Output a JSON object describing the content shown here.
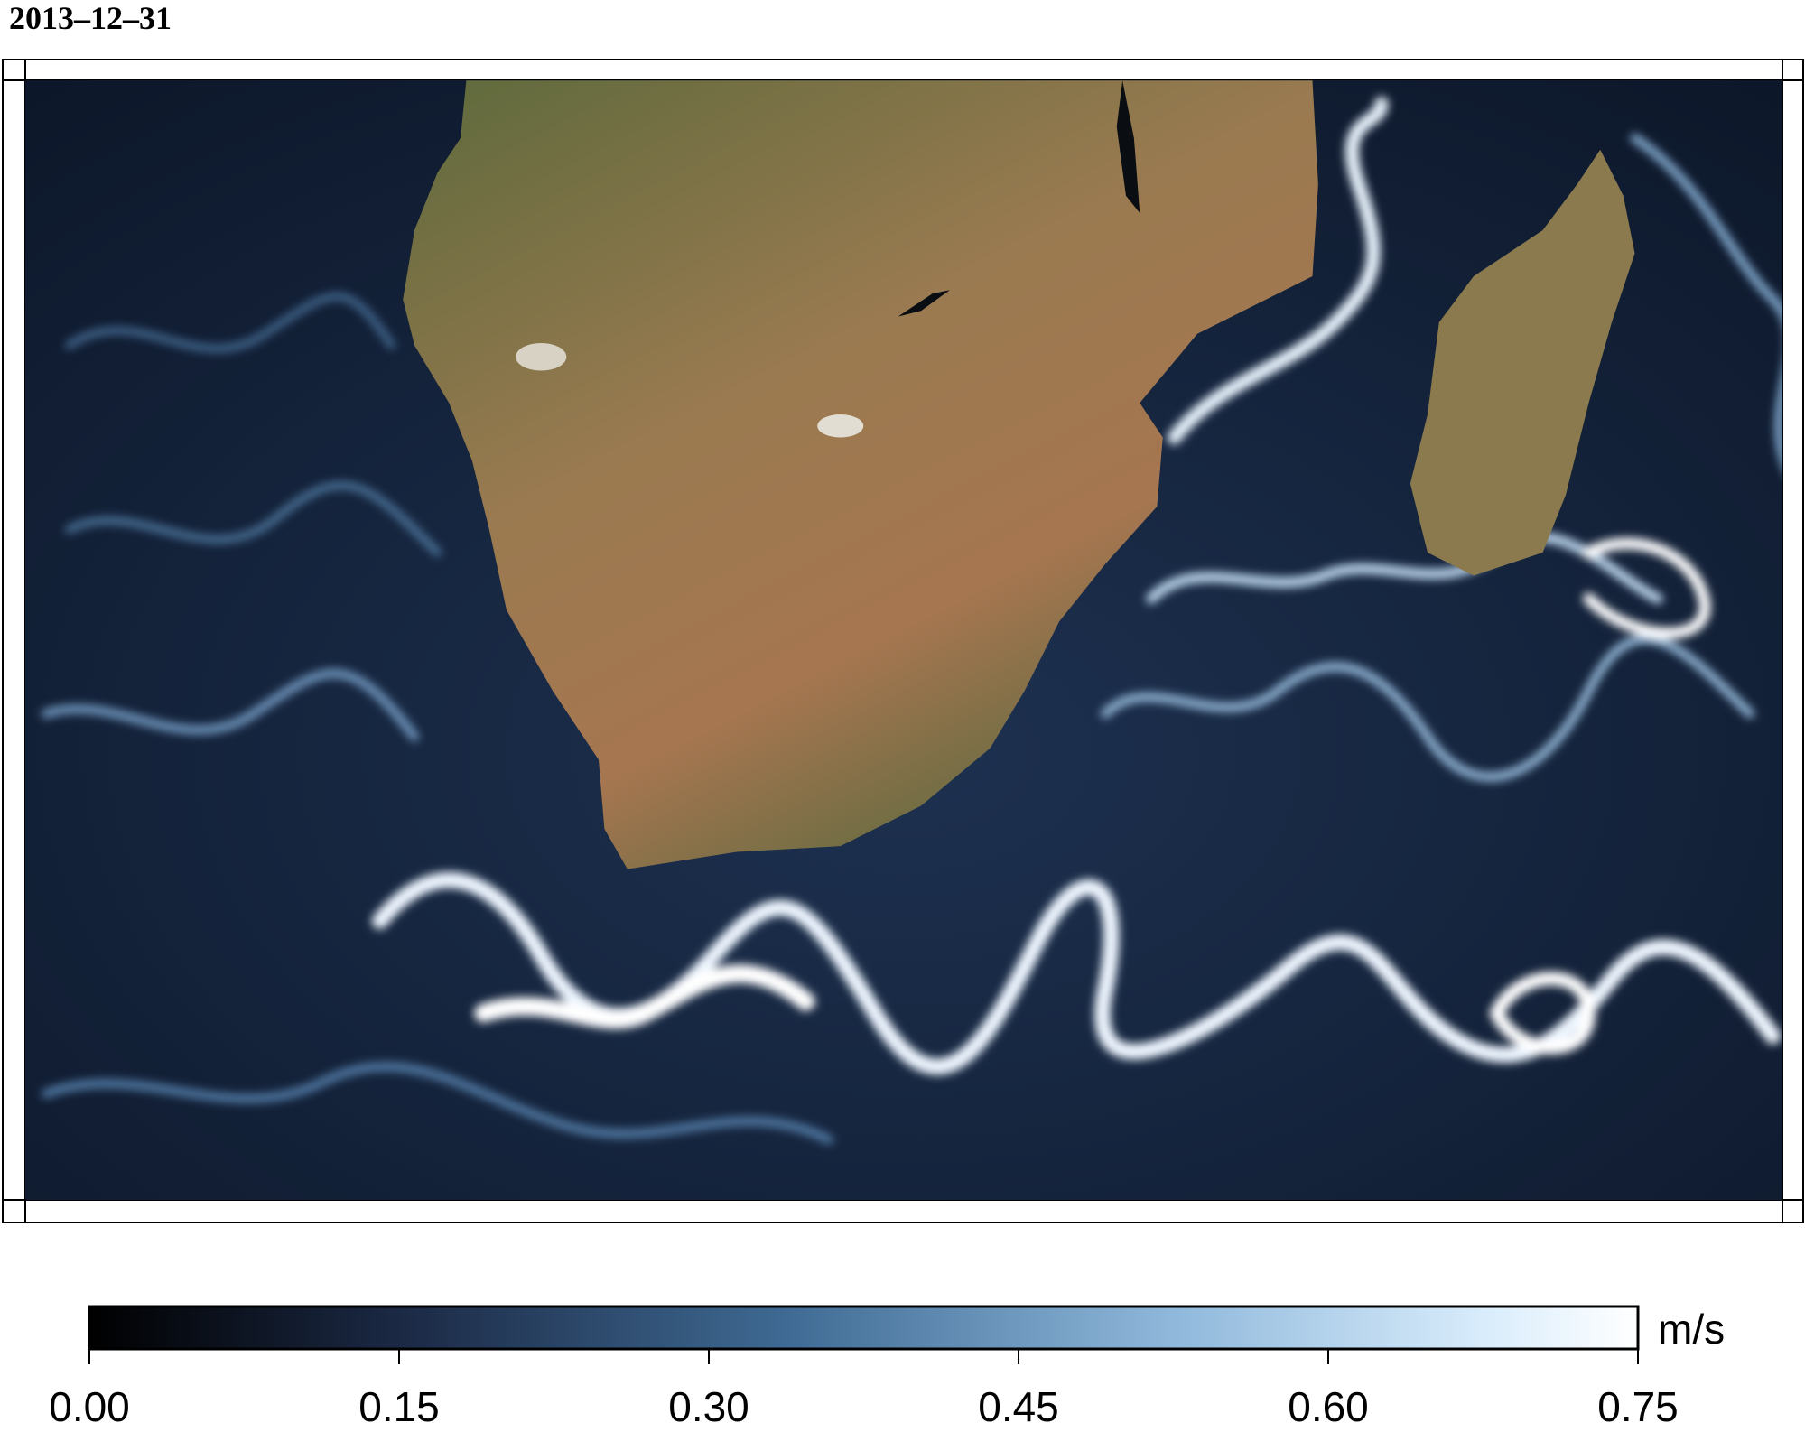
{
  "title": "2013–12–31",
  "colorbar": {
    "label": "m/s",
    "lim": [
      0,
      0.75
    ],
    "ticks": [
      {
        "value": 0,
        "label": "0.00"
      },
      0.15,
      {
        "value": 0.3,
        "label": "0.30"
      },
      0.45,
      {
        "value": 0.6,
        "label": "0.60"
      },
      0.75
    ]
  }
}
